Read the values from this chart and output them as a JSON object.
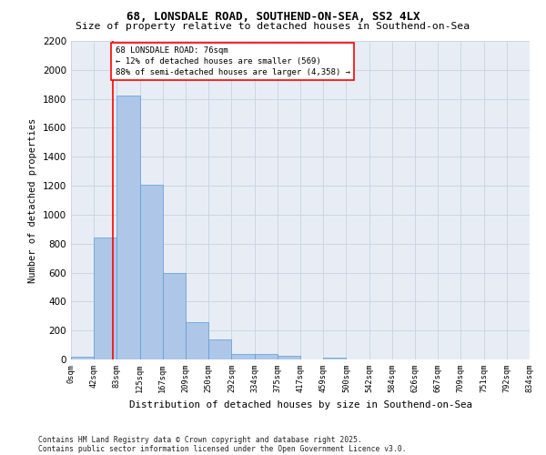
{
  "title1": "68, LONSDALE ROAD, SOUTHEND-ON-SEA, SS2 4LX",
  "title2": "Size of property relative to detached houses in Southend-on-Sea",
  "xlabel": "Distribution of detached houses by size in Southend-on-Sea",
  "ylabel": "Number of detached properties",
  "bin_labels": [
    "0sqm",
    "42sqm",
    "83sqm",
    "125sqm",
    "167sqm",
    "209sqm",
    "250sqm",
    "292sqm",
    "334sqm",
    "375sqm",
    "417sqm",
    "459sqm",
    "500sqm",
    "542sqm",
    "584sqm",
    "626sqm",
    "667sqm",
    "709sqm",
    "751sqm",
    "792sqm",
    "834sqm"
  ],
  "bar_values": [
    20,
    840,
    1820,
    1210,
    600,
    255,
    140,
    40,
    38,
    28,
    0,
    12,
    0,
    0,
    0,
    0,
    0,
    0,
    0,
    0
  ],
  "bar_color": "#aec6e8",
  "bar_edge_color": "#5b9bd5",
  "grid_color": "#cdd5e5",
  "background_color": "#e8edf5",
  "property_line_x": 1.829,
  "annotation_text": "68 LONSDALE ROAD: 76sqm\n← 12% of detached houses are smaller (569)\n88% of semi-detached houses are larger (4,358) →",
  "footer_line1": "Contains HM Land Registry data © Crown copyright and database right 2025.",
  "footer_line2": "Contains public sector information licensed under the Open Government Licence v3.0.",
  "ylim_max": 2200,
  "yticks": [
    0,
    200,
    400,
    600,
    800,
    1000,
    1200,
    1400,
    1600,
    1800,
    2000,
    2200
  ]
}
